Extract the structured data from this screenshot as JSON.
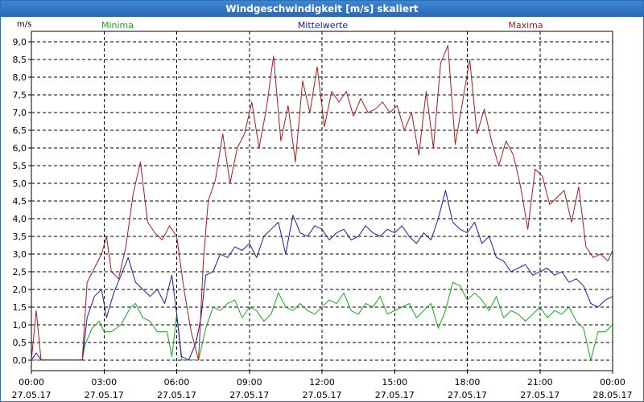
{
  "window": {
    "title": "Windgeschwindigkeit [m/s] skaliert"
  },
  "colors": {
    "min": "#17a817",
    "mean": "#1a1aa8",
    "max": "#a81c1c",
    "grid": "#000000",
    "axis": "#000000"
  },
  "chart_data": {
    "type": "line",
    "title": "Windgeschwindigkeit [m/s] skaliert",
    "ylabel": "m/s",
    "xlabel": "",
    "ylim": [
      -0.3,
      9.3
    ],
    "yticks": [
      0,
      0.5,
      1,
      1.5,
      2,
      2.5,
      3,
      3.5,
      4,
      4.5,
      5,
      5.5,
      6,
      6.5,
      7,
      7.5,
      8,
      8.5,
      9
    ],
    "ytick_labels": [
      "0,0",
      "0,5",
      "1,0",
      "1,5",
      "2,0",
      "2,5",
      "3,0",
      "3,5",
      "4,0",
      "4,5",
      "5,0",
      "5,5",
      "6,0",
      "6,5",
      "7,0",
      "7,5",
      "8,0",
      "8,5",
      "9,0"
    ],
    "xlim": [
      0,
      24
    ],
    "xticks": [
      0,
      3,
      6,
      9,
      12,
      15,
      18,
      21,
      24
    ],
    "xtick_labels": [
      {
        "time": "00:00",
        "date": "27.05.17"
      },
      {
        "time": "03:00",
        "date": "27.05.17"
      },
      {
        "time": "06:00",
        "date": "27.05.17"
      },
      {
        "time": "09:00",
        "date": "27.05.17"
      },
      {
        "time": "12:00",
        "date": "27.05.17"
      },
      {
        "time": "15:00",
        "date": "27.05.17"
      },
      {
        "time": "18:00",
        "date": "27.05.17"
      },
      {
        "time": "21:00",
        "date": "27.05.17"
      },
      {
        "time": "00:00",
        "date": "28.05.17"
      }
    ],
    "legend": [
      "Minima",
      "Mittelwerte",
      "Maxima"
    ],
    "series": [
      {
        "name": "Minima",
        "color_key": "min",
        "x": [
          0,
          0.2,
          0.4,
          2.1,
          2.2,
          2.5,
          2.8,
          3.0,
          3.3,
          3.7,
          4.1,
          4.3,
          4.6,
          4.9,
          5.2,
          5.6,
          5.8,
          6.0,
          6.2,
          6.4,
          6.6,
          6.9,
          7.2,
          7.5,
          7.8,
          8.1,
          8.4,
          8.7,
          9.0,
          9.3,
          9.6,
          9.9,
          10.2,
          10.5,
          10.8,
          11.1,
          11.4,
          11.7,
          12.0,
          12.3,
          12.6,
          12.9,
          13.2,
          13.5,
          13.8,
          14.1,
          14.4,
          14.7,
          15.0,
          15.3,
          15.6,
          15.9,
          16.2,
          16.5,
          16.8,
          17.1,
          17.4,
          17.7,
          18.0,
          18.3,
          18.6,
          18.9,
          19.2,
          19.5,
          19.8,
          20.1,
          20.4,
          20.7,
          21.0,
          21.3,
          21.6,
          21.9,
          22.2,
          22.5,
          22.8,
          23.1,
          23.4,
          23.7,
          24.0
        ],
        "values": [
          0,
          0,
          0,
          0,
          0.4,
          0.9,
          1.1,
          0.8,
          0.8,
          1.0,
          1.5,
          1.6,
          1.2,
          1.1,
          0.8,
          0.8,
          0.1,
          1.3,
          0,
          0,
          0,
          0,
          0.9,
          1.5,
          1.4,
          1.6,
          1.7,
          1.2,
          1.5,
          1.4,
          1.1,
          1.3,
          1.9,
          1.5,
          1.4,
          1.6,
          1.4,
          1.3,
          1.5,
          1.7,
          1.6,
          1.9,
          1.4,
          1.3,
          1.6,
          1.5,
          1.8,
          1.3,
          1.4,
          1.5,
          1.6,
          1.2,
          1.4,
          1.6,
          0.9,
          1.4,
          2.2,
          2.1,
          1.7,
          1.9,
          1.7,
          1.4,
          1.8,
          1.2,
          1.4,
          1.3,
          1.1,
          1.3,
          1.5,
          1.2,
          1.4,
          1.3,
          1.5,
          1.1,
          0.9,
          0.0,
          0.8,
          0.8,
          1.0
        ]
      },
      {
        "name": "Mittelwerte",
        "color_key": "mean",
        "x": [
          0,
          0.2,
          0.4,
          2.1,
          2.3,
          2.6,
          2.9,
          3.1,
          3.4,
          3.7,
          4.0,
          4.3,
          4.6,
          4.9,
          5.2,
          5.5,
          5.8,
          6.0,
          6.2,
          6.5,
          6.8,
          7.0,
          7.2,
          7.5,
          7.8,
          8.1,
          8.4,
          8.7,
          9.0,
          9.3,
          9.6,
          9.9,
          10.2,
          10.5,
          10.8,
          11.1,
          11.4,
          11.7,
          12.0,
          12.3,
          12.6,
          12.9,
          13.2,
          13.5,
          13.8,
          14.1,
          14.4,
          14.7,
          15.0,
          15.3,
          15.6,
          15.9,
          16.2,
          16.5,
          16.8,
          17.1,
          17.4,
          17.7,
          18.0,
          18.3,
          18.6,
          18.9,
          19.2,
          19.5,
          19.8,
          20.1,
          20.4,
          20.7,
          21.0,
          21.3,
          21.6,
          21.9,
          22.2,
          22.5,
          22.8,
          23.1,
          23.4,
          23.7,
          24.0
        ],
        "values": [
          0,
          0.2,
          0,
          0,
          1.2,
          1.8,
          2.0,
          1.2,
          1.9,
          2.4,
          2.9,
          2.2,
          2.0,
          1.8,
          2.0,
          1.6,
          2.4,
          1.3,
          0.1,
          0,
          0.5,
          1.2,
          2.4,
          2.5,
          3.0,
          2.9,
          3.2,
          3.1,
          3.3,
          2.9,
          3.5,
          3.7,
          3.9,
          3.0,
          4.1,
          3.6,
          3.5,
          3.8,
          3.7,
          3.4,
          3.6,
          3.7,
          3.4,
          3.5,
          3.8,
          3.6,
          3.5,
          3.7,
          3.6,
          3.8,
          3.5,
          3.3,
          3.6,
          3.4,
          4.0,
          4.8,
          3.9,
          3.7,
          3.6,
          3.9,
          3.3,
          3.5,
          2.9,
          2.8,
          2.5,
          2.6,
          2.7,
          2.4,
          2.5,
          2.6,
          2.4,
          2.5,
          2.2,
          2.3,
          2.1,
          1.6,
          1.5,
          1.7,
          1.8
        ]
      },
      {
        "name": "Maxima",
        "color_key": "max",
        "x": [
          0,
          0.2,
          0.4,
          2.1,
          2.3,
          2.6,
          2.9,
          3.1,
          3.3,
          3.6,
          3.9,
          4.2,
          4.5,
          4.8,
          5.1,
          5.4,
          5.7,
          6.0,
          6.3,
          6.6,
          6.9,
          7.1,
          7.3,
          7.6,
          7.9,
          8.2,
          8.5,
          8.8,
          9.1,
          9.4,
          9.7,
          10.0,
          10.3,
          10.6,
          10.9,
          11.2,
          11.5,
          11.8,
          12.1,
          12.4,
          12.7,
          13.0,
          13.3,
          13.6,
          13.9,
          14.2,
          14.5,
          14.8,
          15.1,
          15.4,
          15.7,
          16.0,
          16.3,
          16.6,
          16.9,
          17.2,
          17.5,
          17.8,
          18.1,
          18.4,
          18.7,
          19.0,
          19.3,
          19.6,
          19.9,
          20.2,
          20.5,
          20.8,
          21.1,
          21.4,
          21.7,
          22.0,
          22.3,
          22.6,
          22.9,
          23.2,
          23.5,
          23.8,
          24.0
        ],
        "values": [
          0,
          1.4,
          0,
          0,
          2.2,
          2.6,
          3.0,
          3.5,
          2.5,
          2.3,
          3.2,
          4.7,
          5.6,
          3.9,
          3.6,
          3.4,
          3.8,
          3.5,
          2.0,
          0.8,
          0,
          2.8,
          4.5,
          5.1,
          6.4,
          5.0,
          6.0,
          6.4,
          7.3,
          6.0,
          7.1,
          8.6,
          6.2,
          7.2,
          5.6,
          7.9,
          7.0,
          8.3,
          6.6,
          7.6,
          7.3,
          7.6,
          6.9,
          7.4,
          7.0,
          7.1,
          7.3,
          7.0,
          7.2,
          6.5,
          7.0,
          5.8,
          7.6,
          6.0,
          8.4,
          8.9,
          6.1,
          7.3,
          8.5,
          6.4,
          7.1,
          6.2,
          5.5,
          6.2,
          5.8,
          4.9,
          3.7,
          5.4,
          5.2,
          4.4,
          4.6,
          4.8,
          3.9,
          4.9,
          3.2,
          2.9,
          3.0,
          2.8,
          3.1
        ]
      }
    ]
  }
}
